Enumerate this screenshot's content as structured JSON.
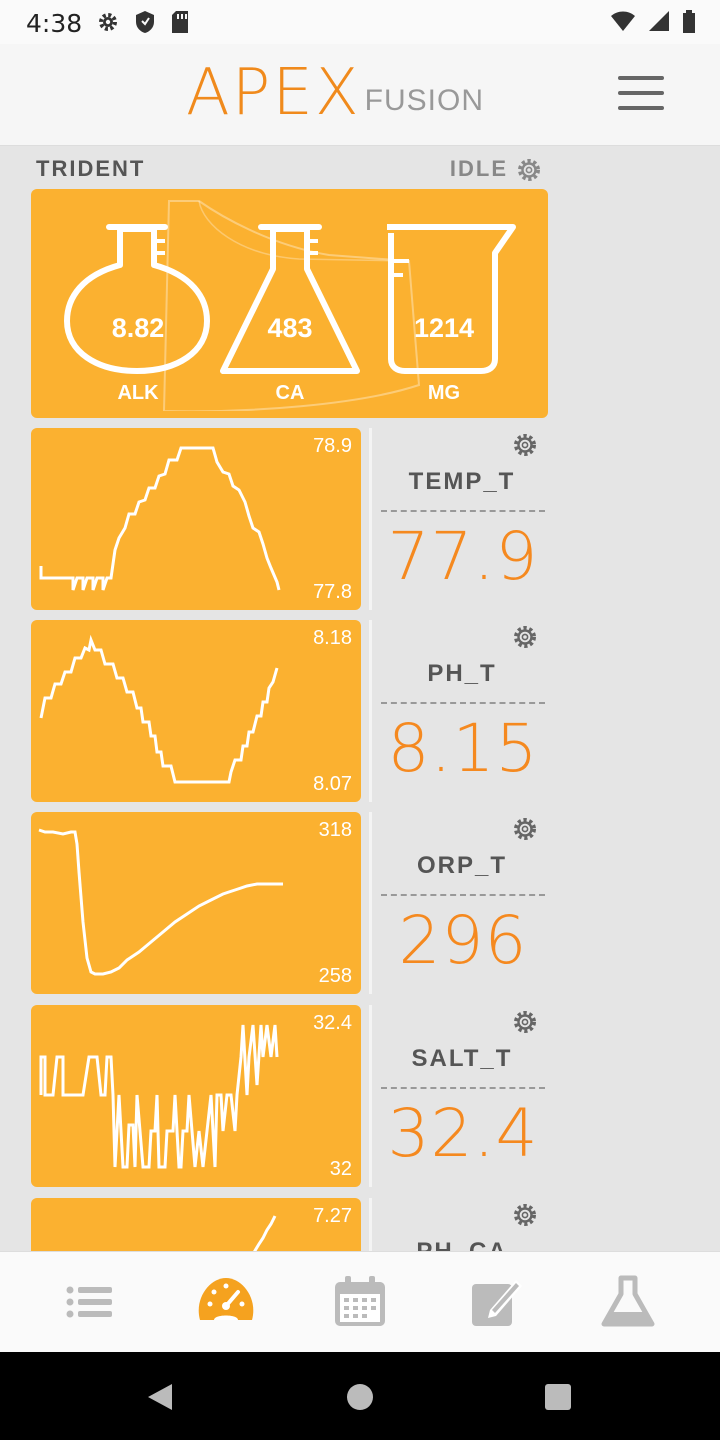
{
  "status_bar": {
    "time": "4:38",
    "left_icons": [
      "gear-icon",
      "shield-icon",
      "sd-card-icon"
    ],
    "right_icons": [
      "wifi-icon",
      "signal-icon",
      "battery-icon"
    ]
  },
  "header": {
    "logo_primary": "APEX",
    "logo_secondary": "FUSION",
    "menu_icon": "hamburger-menu-icon"
  },
  "trident": {
    "title": "TRIDENT",
    "status": "IDLE",
    "flasks": [
      {
        "label": "ALK",
        "value": "8.82"
      },
      {
        "label": "CA",
        "value": "483"
      },
      {
        "label": "MG",
        "value": "1214"
      }
    ]
  },
  "probes": [
    {
      "name": "TEMP_T",
      "value": "77.9",
      "max": "78.9",
      "min": "77.8"
    },
    {
      "name": "PH_T",
      "value": "8.15",
      "max": "8.18",
      "min": "8.07"
    },
    {
      "name": "ORP_T",
      "value": "296",
      "max": "318",
      "min": "258"
    },
    {
      "name": "SALT_T",
      "value": "32.4",
      "max": "32.4",
      "min": "32"
    },
    {
      "name": "PH_CA",
      "value": "",
      "max": "7.27",
      "min": ""
    }
  ],
  "bottom_nav": [
    "list-icon",
    "dashboard-icon",
    "calendar-icon",
    "edit-icon",
    "flask-icon"
  ],
  "colors": {
    "accent_orange": "#f5891f",
    "card_yellow": "#fbb130",
    "logo_orange": "#f08a1c"
  }
}
